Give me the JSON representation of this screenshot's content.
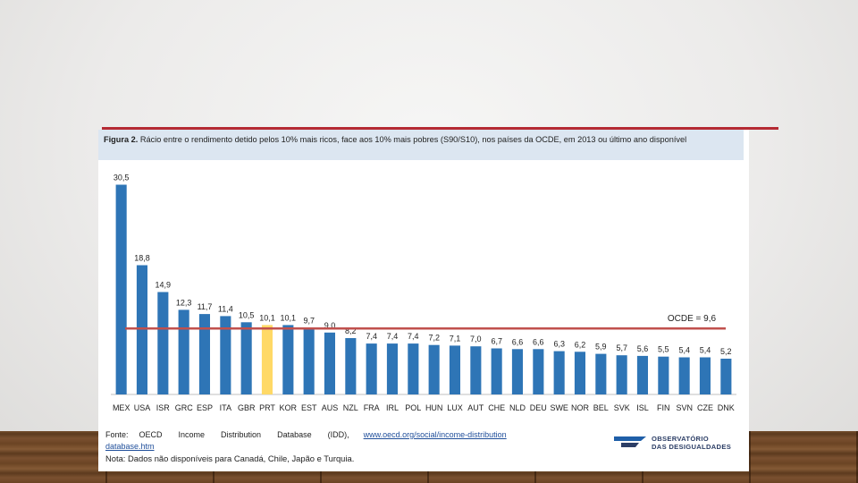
{
  "caption": {
    "label": "Figura 2.",
    "text": "Rácio entre o rendimento detido pelos 10% mais ricos, face aos 10% mais pobres (S90/S10), nos países da OCDE, em 2013 ou último ano disponível"
  },
  "chart_data": {
    "type": "bar",
    "categories": [
      "MEX",
      "USA",
      "ISR",
      "GRC",
      "ESP",
      "ITA",
      "GBR",
      "PRT",
      "KOR",
      "EST",
      "AUS",
      "NZL",
      "FRA",
      "IRL",
      "POL",
      "HUN",
      "LUX",
      "AUT",
      "CHE",
      "NLD",
      "DEU",
      "SWE",
      "NOR",
      "BEL",
      "SVK",
      "ISL",
      "FIN",
      "SVN",
      "CZE",
      "DNK"
    ],
    "values": [
      30.5,
      18.8,
      14.9,
      12.3,
      11.7,
      11.4,
      10.5,
      10.1,
      10.1,
      9.7,
      9.0,
      8.2,
      7.4,
      7.4,
      7.4,
      7.2,
      7.1,
      7.0,
      6.7,
      6.6,
      6.6,
      6.3,
      6.2,
      5.9,
      5.7,
      5.6,
      5.5,
      5.4,
      5.4,
      5.2
    ],
    "value_labels": [
      "30,5",
      "18,8",
      "14,9",
      "12,3",
      "11,7",
      "11,4",
      "10,5",
      "10,1",
      "10,1",
      "9,7",
      "9,0",
      "8,2",
      "7,4",
      "7,4",
      "7,4",
      "7,2",
      "7,1",
      "7,0",
      "6,7",
      "6,6",
      "6,6",
      "6,3",
      "6,2",
      "5,9",
      "5,7",
      "5,6",
      "5,5",
      "5,4",
      "5,4",
      "5,2"
    ],
    "highlight_category": "PRT",
    "colors": {
      "bar": "#2e75b6",
      "highlight": "#ffd966",
      "reference": "#c0504d"
    },
    "reference_line": {
      "value": 9.6,
      "label": "OCDE = 9,6"
    },
    "ylim": [
      0,
      32
    ],
    "grid": false
  },
  "source": {
    "prefix": "Fonte:",
    "words": [
      "OECD",
      "Income",
      "Distribution",
      "Database",
      "(IDD),"
    ],
    "link_part1": "www.oecd.org/social/income-distribution",
    "link_part2": "database.htm",
    "note": "Nota: Dados não disponíveis para Canadá, Chile, Japão e Turquia."
  },
  "logo": {
    "line1": "OBSERVATÓRIO",
    "line2": "DAS DESIGUALDADES"
  }
}
